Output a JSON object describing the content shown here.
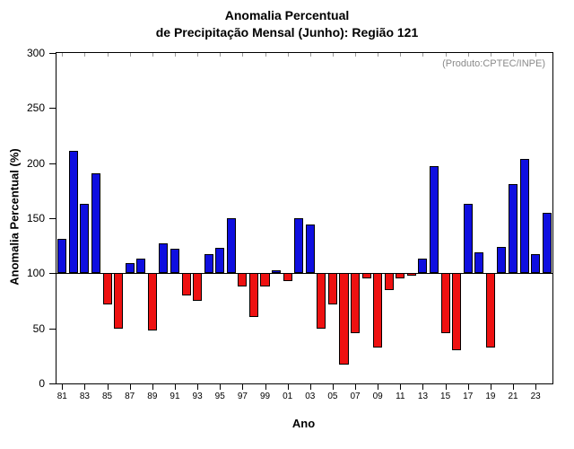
{
  "title": {
    "line1": "Anomalia Percentual",
    "line2": "de Precipitação Mensal (Junho): Região 121"
  },
  "annotation": "(Produto:CPTEC/INPE)",
  "chart_data": {
    "type": "bar",
    "title": "Anomalia Percentual de Precipitação Mensal (Junho): Região 121",
    "xlabel": "Ano",
    "ylabel": "Anomalia Percentual (%)",
    "ylim": [
      0,
      300
    ],
    "ytick_step": 50,
    "baseline": 100,
    "grid": false,
    "colors": {
      "above": "#0f0fe0",
      "below": "#ee1111"
    },
    "years": [
      1981,
      1982,
      1983,
      1984,
      1985,
      1986,
      1987,
      1988,
      1989,
      1990,
      1991,
      1992,
      1993,
      1994,
      1995,
      1996,
      1997,
      1998,
      1999,
      2000,
      2001,
      2002,
      2003,
      2004,
      2005,
      2006,
      2007,
      2008,
      2009,
      2010,
      2011,
      2012,
      2013,
      2014,
      2015,
      2016,
      2017,
      2018,
      2019,
      2020,
      2021,
      2022,
      2023,
      2024
    ],
    "values": [
      131,
      211,
      163,
      191,
      72,
      50,
      109,
      113,
      48,
      127,
      122,
      80,
      75,
      117,
      123,
      150,
      88,
      60,
      88,
      103,
      93,
      150,
      144,
      50,
      72,
      17,
      46,
      95,
      33,
      85,
      95,
      98,
      113,
      197,
      46,
      30,
      163,
      119,
      33,
      124,
      181,
      204,
      117,
      155
    ],
    "xtick_labels": [
      "81",
      "83",
      "85",
      "87",
      "89",
      "91",
      "93",
      "95",
      "97",
      "99",
      "01",
      "03",
      "05",
      "07",
      "09",
      "11",
      "13",
      "15",
      "17",
      "19",
      "21",
      "23"
    ]
  }
}
